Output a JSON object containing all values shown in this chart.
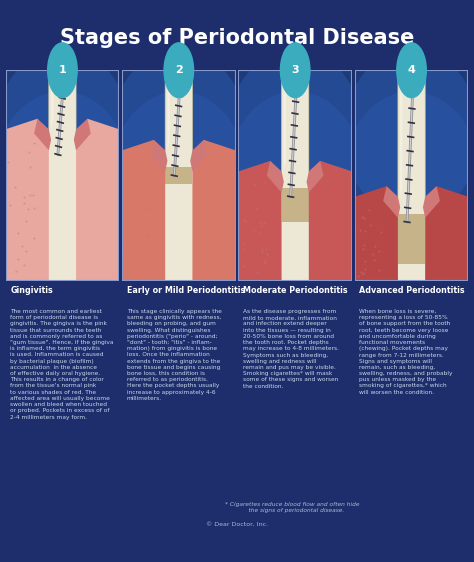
{
  "title": "Stages of Periodontal Disease",
  "bg_color": "#1e2d6b",
  "title_color": "#ffffff",
  "title_fontsize": 15,
  "circle_color": "#3aacbe",
  "stage_numbers": [
    "1",
    "2",
    "3",
    "4"
  ],
  "stage_headings": [
    "Gingivitis",
    "Early or Mild Periodontitis",
    "Moderate Periodontitis",
    "Advanced Periodontitis"
  ],
  "heading_color": "#ffffff",
  "heading_fontsize": 5.8,
  "body_color": "#c8d8ea",
  "body_fontsize": 4.2,
  "stage_texts": [
    "The most common and earliest\nform of periodontal disease is\ngingivitis. The gingiva is the pink\ntissue that surrounds the teeth\nand is commonly referred to as\n\"gum tissue\". Hence, if the gingiva\nis inflamed, the term gingivitis\nis used. Inflammation is caused\nby bacterial plaque (biofilm)\naccumulation  in the absence\nof effective daily oral hygiene.\nThis results in a change of color\nfrom the tissue's normal pink\nto various shades of red. The\naffected area will usually become\nswollen and bleed when touched\nor probed. Pockets in excess of of\n2-4 millimeters may form.",
    "This stage clinically appears the\nsame as gingivitis with redness,\nbleeding on probing, and gum\nswelling. What distinguishes\nperiodontitis (\"perio\" - around;\n\"dont\" - tooth; \"itis\" - inflam-\nmation) from gingivitis is bone\nloss. Once the inflammation\nextends from the gingiva to the\nbone tissue and begins causing\nbone loss, this condition is\nreferred to as periodontitis.\nHere the pocket depths usually\nincrease to approximately 4-6\nmillimeters.",
    "As the disease progresses from\nmild to moderate, inflammation\nand infection extend deeper\ninto the tissues — resulting in\n20-50% bone loss from around\nthe tooth root. Pocket depths\nmay increase to 4-8 millimeters.\nSymptoms such as bleeding,\nswelling and redness will\nremain and pus may be visible.\nSmoking cigarettes* will mask\nsome of these signs and worsen\nthe condition.",
    "When bone loss is severe,\nrepresenting a loss of 50-85%\nof bone support from the tooth\nroot, teeth become very loose\nand uncomfortable during\nfunctional movements\n(chewing). Pocket depths may\nrange from 7-12 millimeters.\nSigns and symptoms will\nremain, such as bleeding,\nswelling, redness, and probably\npus unless masked by the\nsmoking of cigarettes,* which\nwill worsen the condition."
  ],
  "footnote_color": "#aabbd0",
  "footnote": "* Cigarettes reduce blood flow and often hide\n    the signs of periodontal disease.",
  "copyright": "© Dear Doctor, Inc.",
  "copyright_color": "#aabbd0",
  "tooth_color": "#f0ead8",
  "tooth_root_color": "#d4c898",
  "enamel_color": "#e8e0c8",
  "gum_healthy_color": "#e8a8a0",
  "gum_colors": [
    "#e8a8a0",
    "#d87868",
    "#c85858",
    "#b84848"
  ],
  "bone_color": "#c8a870",
  "bone_spongy_color": "#d4b888",
  "pdl_color": "#e8c8b8",
  "probe_color": "#909098",
  "probe_mark_color": "#404048",
  "panel_border_color": "#6080b0",
  "panel_bg_colors": [
    "#2a4080",
    "#2a4080",
    "#2a4080",
    "#2a4080"
  ],
  "gum_levels": [
    0.62,
    0.52,
    0.42,
    0.3
  ],
  "bone_tops": [
    0.38,
    0.3,
    0.22,
    0.12
  ],
  "probe_depths": [
    0.6,
    0.5,
    0.4,
    0.28
  ]
}
